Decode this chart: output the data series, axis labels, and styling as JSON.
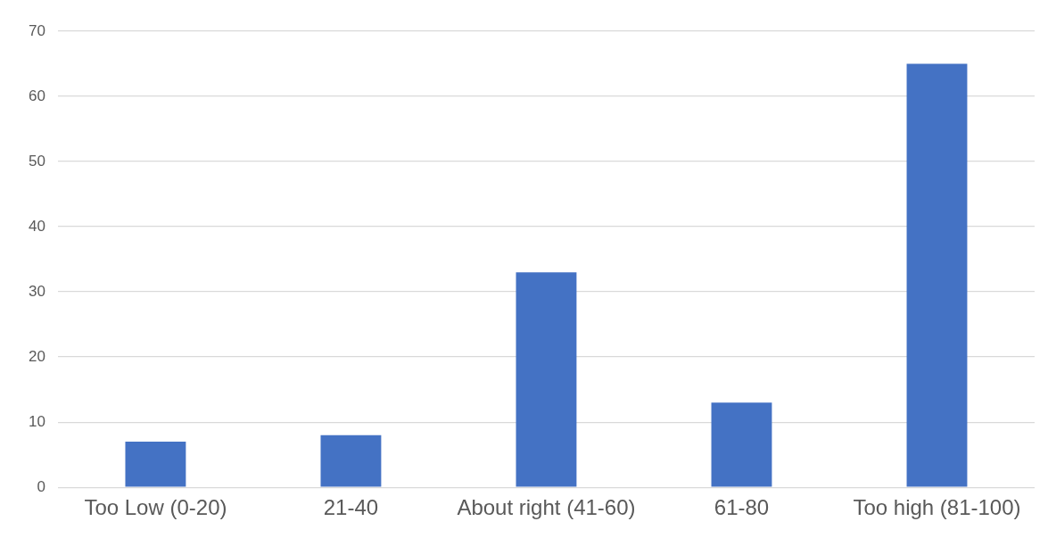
{
  "chart_data": {
    "type": "bar",
    "categories": [
      "Too Low (0-20)",
      "21-40",
      "About right (41-60)",
      "61-80",
      "Too high (81-100)"
    ],
    "values": [
      7,
      8,
      33,
      13,
      65
    ],
    "color": "#4472c4",
    "ylim": [
      0,
      70
    ],
    "yticks": [
      0,
      10,
      20,
      30,
      40,
      50,
      60,
      70
    ],
    "grid": "y",
    "legend": false
  }
}
